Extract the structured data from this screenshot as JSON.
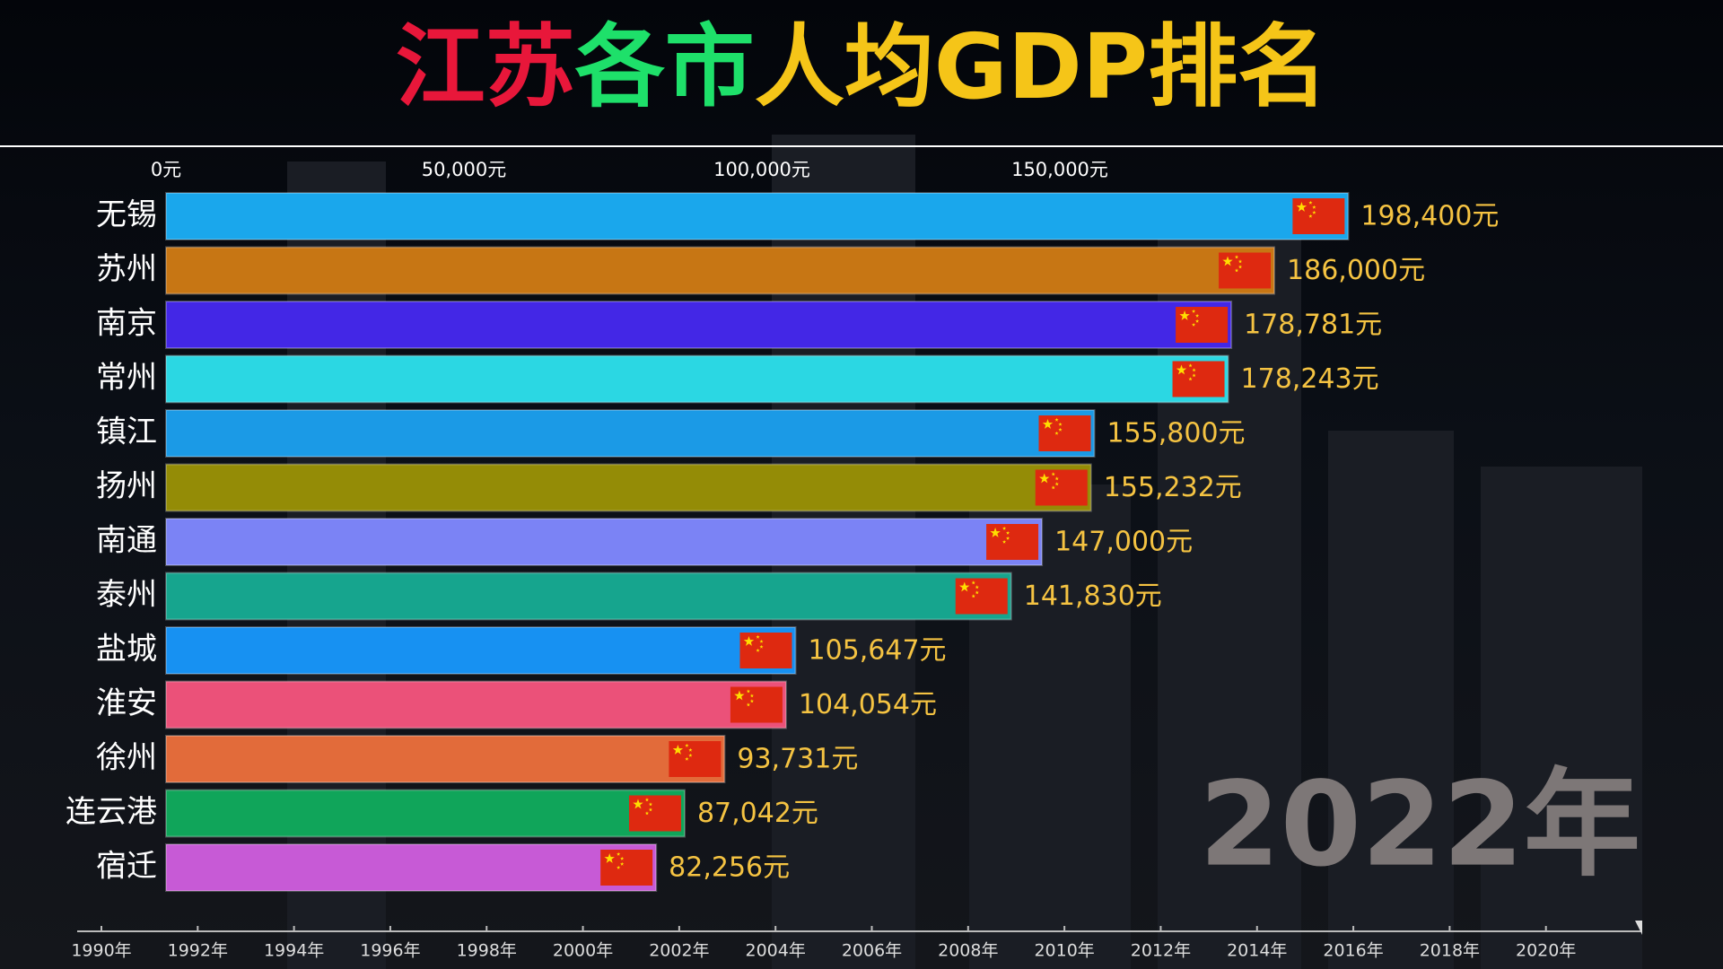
{
  "chart_data": {
    "type": "bar",
    "orientation": "horizontal",
    "title": "江苏各市人均GDP排名",
    "title_colors": [
      "#e8173a",
      "#e8173a",
      "#1ee06a",
      "#1ee06a",
      "#f5c518",
      "#f5c518",
      "#f5c518",
      "#f5c518",
      "#f5c518",
      "#f5c518",
      "#f5c518",
      "#f5c518"
    ],
    "categories": [
      "无锡",
      "苏州",
      "南京",
      "常州",
      "镇江",
      "扬州",
      "南通",
      "泰州",
      "盐城",
      "淮安",
      "徐州",
      "连云港",
      "宿迁"
    ],
    "values": [
      198400,
      186000,
      178781,
      178243,
      155800,
      155232,
      147000,
      141830,
      105647,
      104054,
      93731,
      87042,
      82256
    ],
    "value_labels": [
      "198,400元",
      "186,000元",
      "178,781元",
      "178,243元",
      "155,800元",
      "155,232元",
      "147,000元",
      "141,830元",
      "105,647元",
      "104,054元",
      "93,731元",
      "87,042元",
      "82,256元"
    ],
    "colors": [
      "#1aa7ec",
      "#c77614",
      "#4327e6",
      "#2bd7e3",
      "#1b9ae6",
      "#948c06",
      "#7b83f5",
      "#16a58e",
      "#1791f2",
      "#eb5179",
      "#e26b3a",
      "#10a55a",
      "#c75ad6"
    ],
    "xlim": [
      0,
      200000
    ],
    "xticks": [
      {
        "value": 0,
        "label": "0元"
      },
      {
        "value": 50000,
        "label": "50,000元"
      },
      {
        "value": 100000,
        "label": "100,000元"
      },
      {
        "value": 150000,
        "label": "150,000元"
      }
    ],
    "timeline": {
      "lim": [
        1990,
        2022
      ],
      "ticks": [
        {
          "value": 1990,
          "label": "1990年"
        },
        {
          "value": 1992,
          "label": "1992年"
        },
        {
          "value": 1994,
          "label": "1994年"
        },
        {
          "value": 1996,
          "label": "1996年"
        },
        {
          "value": 1998,
          "label": "1998年"
        },
        {
          "value": 2000,
          "label": "2000年"
        },
        {
          "value": 2002,
          "label": "2002年"
        },
        {
          "value": 2004,
          "label": "2004年"
        },
        {
          "value": 2006,
          "label": "2006年"
        },
        {
          "value": 2008,
          "label": "2008年"
        },
        {
          "value": 2010,
          "label": "2010年"
        },
        {
          "value": 2012,
          "label": "2012年"
        },
        {
          "value": 2014,
          "label": "2014年"
        },
        {
          "value": 2016,
          "label": "2016年"
        },
        {
          "value": 2018,
          "label": "2018年"
        },
        {
          "value": 2020,
          "label": "2020年"
        }
      ],
      "current": {
        "value": 2022,
        "label": "2022年"
      }
    }
  }
}
